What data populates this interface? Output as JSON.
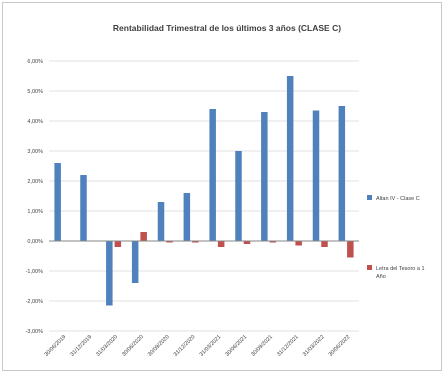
{
  "chart_data": {
    "type": "bar",
    "title": "Rentabilidad Trimestral de los últimos 3 años (CLASE C)",
    "xlabel": "",
    "ylabel": "",
    "ylim": [
      -3.0,
      6.0
    ],
    "yticks": [
      6.0,
      5.0,
      4.0,
      3.0,
      2.0,
      1.0,
      0.0,
      -1.0,
      -2.0,
      -3.0
    ],
    "ytick_labels": [
      "6,00%",
      "5,00%",
      "4,00%",
      "3,00%",
      "2,00%",
      "1,00%",
      "0,00%",
      "-1,00%",
      "-2,00%",
      "-3,00%"
    ],
    "grid": true,
    "legend_position": "right",
    "categories": [
      "30/06/2019",
      "31/12/2019",
      "31/03/2020",
      "30/06/2020",
      "30/09/2020",
      "31/12/2020",
      "31/03/2021",
      "30/06/2021",
      "30/09/2021",
      "31/12/2021",
      "31/03/2022",
      "30/06/2022"
    ],
    "series": [
      {
        "name": "Altan IV - Clase C",
        "color": "#4f81bd",
        "values": [
          2.6,
          2.2,
          -2.15,
          -1.4,
          1.3,
          1.6,
          4.4,
          3.0,
          4.3,
          5.5,
          4.35,
          4.5
        ]
      },
      {
        "name": "Letra del Tesoro a 1 Año",
        "color": "#c0504d",
        "values": [
          0.0,
          0.0,
          -0.2,
          0.3,
          -0.05,
          -0.05,
          -0.2,
          -0.1,
          -0.05,
          -0.15,
          -0.2,
          -0.55
        ]
      }
    ]
  }
}
